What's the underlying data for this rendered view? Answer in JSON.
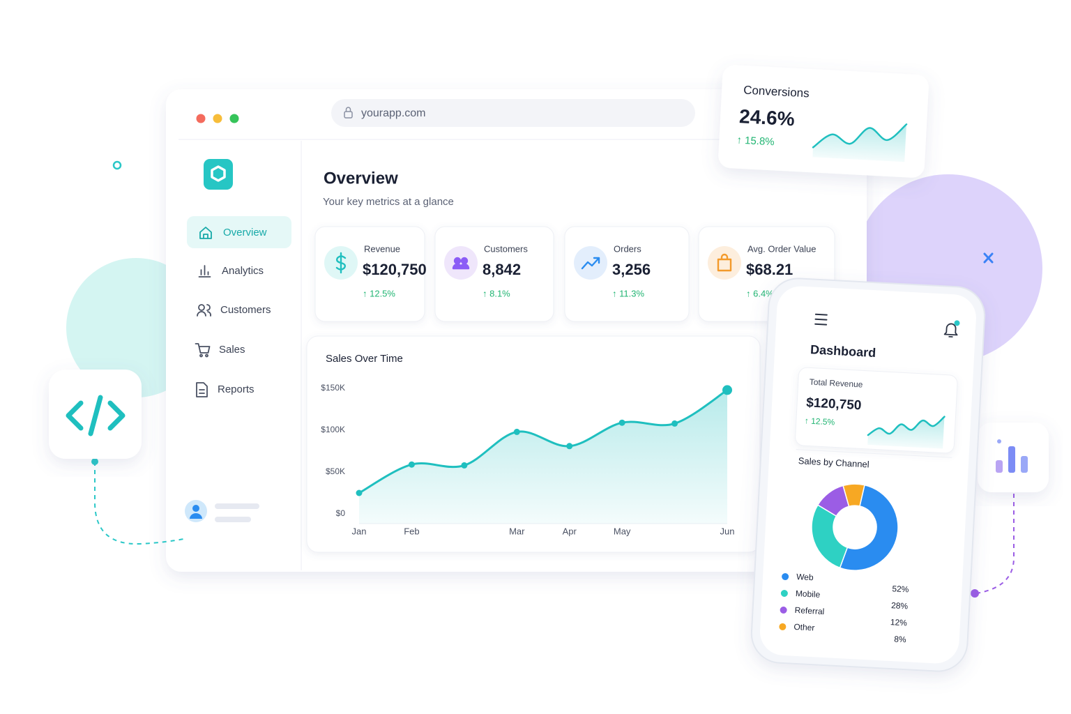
{
  "browser": {
    "url": "yourapp.com"
  },
  "sidebar": {
    "nav": [
      "Overview",
      "Analytics",
      "Customers",
      "Sales",
      "Reports"
    ]
  },
  "header": {
    "title": "Overview",
    "subtitle": "Your key metrics at a glance"
  },
  "metrics": [
    {
      "label": "Revenue",
      "value": "$120,750",
      "change": "↑ 12.5%"
    },
    {
      "label": "Customers",
      "value": "8,842",
      "change": "↑ 8.1%"
    },
    {
      "label": "Orders",
      "value": "3,256",
      "change": "↑ 11.3%"
    },
    {
      "label": "Avg. Order Value",
      "value": "$68.21",
      "change": "↑ 6.4%"
    }
  ],
  "sales_chart": {
    "type": "line",
    "title": "Sales Over Time",
    "categories": [
      "Jan",
      "Feb",
      null,
      "Mar",
      "Apr",
      "May",
      null,
      "Jun"
    ],
    "values": [
      25000,
      59000,
      58000,
      98000,
      81000,
      109000,
      108000,
      148000
    ],
    "color": "#1fbfbf",
    "ylim": [
      0,
      150000
    ],
    "yticks": [
      {
        "value": 0,
        "label": "$0"
      },
      {
        "value": 50000,
        "label": "$50K"
      },
      {
        "value": 100000,
        "label": "$100K"
      },
      {
        "value": 150000,
        "label": "$150K"
      }
    ],
    "grid": false
  },
  "conversions": {
    "title": "Conversions",
    "value": "24.6%",
    "change": "↑ 15.8%",
    "sparkline": {
      "type": "line",
      "values": [
        0,
        5,
        2,
        8,
        4,
        10
      ],
      "color": "#1fbfbf"
    }
  },
  "mobile": {
    "title": "Dashboard",
    "total_revenue": {
      "label": "Total Revenue",
      "value": "$120,750",
      "change": "↑ 12.5%",
      "sparkline": {
        "type": "line",
        "values": [
          1,
          4,
          2,
          6,
          4,
          8,
          6,
          10
        ],
        "color": "#1fbfbf"
      }
    },
    "channel_chart": {
      "type": "pie",
      "title": "Sales by Channel",
      "categories": [
        "Web",
        "Mobile",
        "Referral",
        "Other"
      ],
      "values": [
        52,
        28,
        12,
        8
      ],
      "value_labels": [
        "52%",
        "28%",
        "12%",
        "8%"
      ],
      "colors": [
        "#2a8cf0",
        "#2ed1c3",
        "#9b5de5",
        "#f7a823"
      ]
    }
  }
}
